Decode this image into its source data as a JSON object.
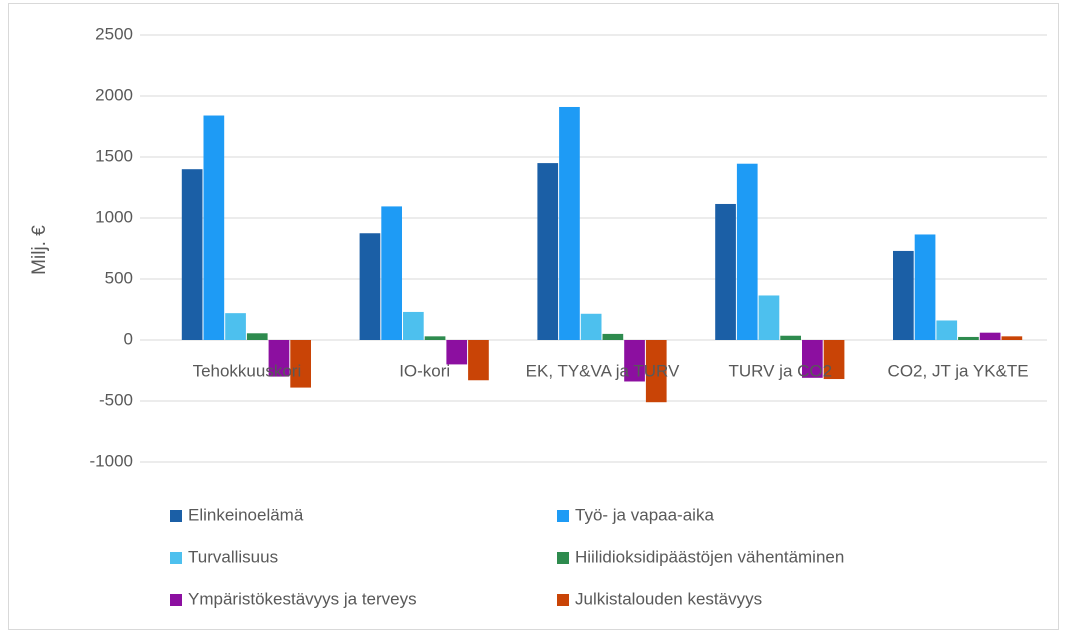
{
  "chart_data": {
    "type": "bar",
    "ylabel": "Milj. €",
    "categories": [
      "Tehokkuuskori",
      "IO-kori",
      "EK, TY&VA ja TURV",
      "TURV ja CO2",
      "CO2, JT ja YK&TE"
    ],
    "series": [
      {
        "name": "Elinkeinoelämä",
        "color": "#1b5fa6",
        "values": [
          1400,
          875,
          1450,
          1115,
          730
        ]
      },
      {
        "name": "Työ- ja vapaa-aika",
        "color": "#1e9bf5",
        "values": [
          1840,
          1095,
          1910,
          1445,
          865
        ]
      },
      {
        "name": "Turvallisuus",
        "color": "#4dc0ee",
        "values": [
          220,
          230,
          215,
          365,
          160
        ]
      },
      {
        "name": "Hiilidioksidipäästöjen vähentäminen",
        "color": "#2e8b4e",
        "values": [
          55,
          30,
          50,
          35,
          25
        ]
      },
      {
        "name": "Ympäristökestävyys ja terveys",
        "color": "#8c0fa0",
        "values": [
          -300,
          -200,
          -340,
          -310,
          60
        ]
      },
      {
        "name": "Julkistalouden kestävyys",
        "color": "#c94406",
        "values": [
          -390,
          -330,
          -510,
          -320,
          30
        ]
      }
    ],
    "ylim": [
      -1000,
      2500
    ],
    "yticks": [
      -1000,
      -500,
      0,
      500,
      1000,
      1500,
      2000,
      2500
    ],
    "grid": true
  }
}
